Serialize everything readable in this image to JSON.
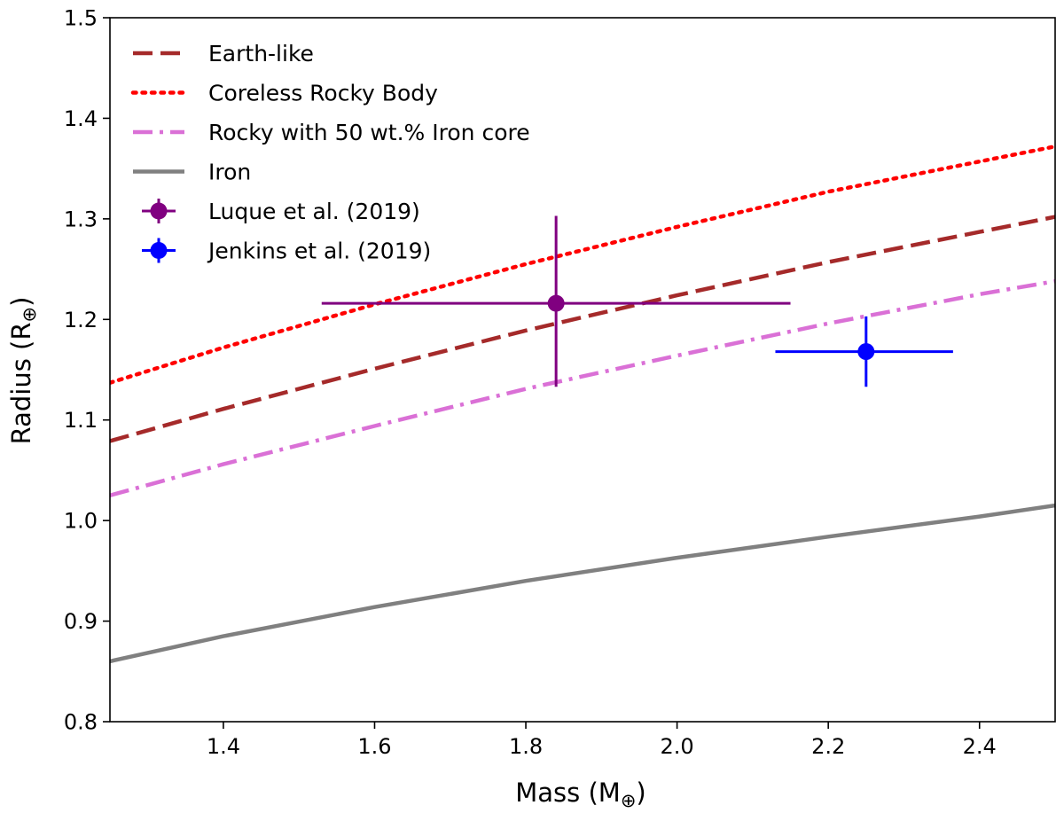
{
  "chart_data": {
    "type": "line",
    "title": "",
    "xlabel": "Mass (M",
    "xlabel_sub": "⊕",
    "xlabel_end": ")",
    "ylabel": "Radius (R",
    "ylabel_sub": "⊕",
    "ylabel_end": ")",
    "xlim": [
      1.25,
      2.5
    ],
    "ylim": [
      0.8,
      1.5
    ],
    "xticks": [
      1.4,
      1.6,
      1.8,
      2.0,
      2.2,
      2.4
    ],
    "xtick_labels": [
      "1.4",
      "1.6",
      "1.8",
      "2.0",
      "2.2",
      "2.4"
    ],
    "yticks": [
      0.8,
      0.9,
      1.0,
      1.1,
      1.2,
      1.3,
      1.4,
      1.5
    ],
    "ytick_labels": [
      "0.8",
      "0.9",
      "1.0",
      "1.1",
      "1.2",
      "1.3",
      "1.4",
      "1.5"
    ],
    "grid": false,
    "legend_position": "top-left",
    "series": [
      {
        "name": "Earth-like",
        "style": "dashed",
        "color": "#a52a2a",
        "x": [
          1.25,
          1.4,
          1.6,
          1.8,
          2.0,
          2.2,
          2.4,
          2.5
        ],
        "y": [
          1.079,
          1.111,
          1.151,
          1.189,
          1.224,
          1.257,
          1.287,
          1.302
        ]
      },
      {
        "name": "Coreless Rocky Body",
        "style": "dotted",
        "color": "#ff0000",
        "x": [
          1.25,
          1.4,
          1.6,
          1.8,
          2.0,
          2.2,
          2.4,
          2.5
        ],
        "y": [
          1.137,
          1.172,
          1.215,
          1.255,
          1.292,
          1.327,
          1.357,
          1.372
        ]
      },
      {
        "name": "Rocky with 50 wt.% Iron core",
        "style": "dashdot",
        "color": "#da70d6",
        "x": [
          1.25,
          1.4,
          1.6,
          1.8,
          2.0,
          2.2,
          2.4,
          2.5
        ],
        "y": [
          1.025,
          1.056,
          1.094,
          1.131,
          1.164,
          1.196,
          1.225,
          1.238
        ]
      },
      {
        "name": "Iron",
        "style": "solid",
        "color": "#808080",
        "x": [
          1.25,
          1.4,
          1.6,
          1.8,
          2.0,
          2.2,
          2.4,
          2.5
        ],
        "y": [
          0.86,
          0.885,
          0.914,
          0.94,
          0.963,
          0.984,
          1.004,
          1.015
        ]
      }
    ],
    "points": [
      {
        "name": "Luque et al. (2019)",
        "color": "#800080",
        "x": 1.84,
        "y": 1.216,
        "xerr": [
          0.31,
          0.31
        ],
        "yerr": [
          0.083,
          0.087
        ]
      },
      {
        "name": "Jenkins et al. (2019)",
        "color": "#0000ff",
        "x": 2.25,
        "y": 1.168,
        "xerr": [
          0.12,
          0.115
        ],
        "yerr": [
          0.035,
          0.035
        ]
      }
    ]
  }
}
